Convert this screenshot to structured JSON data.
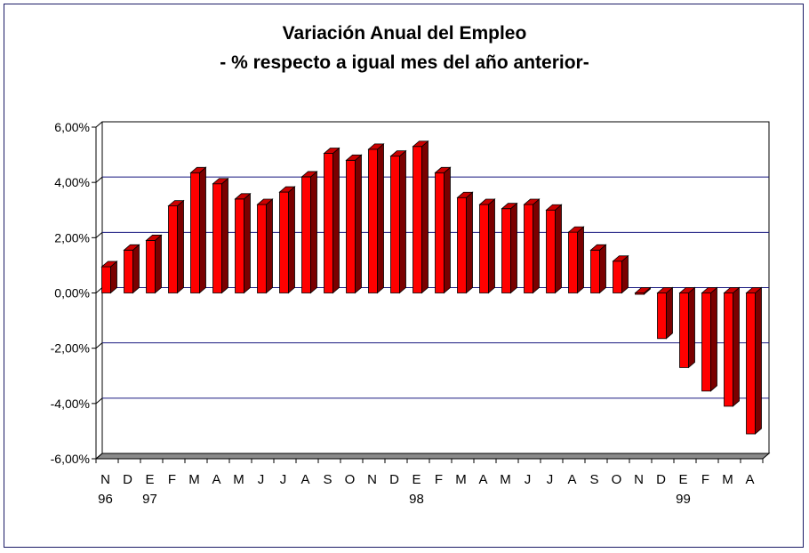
{
  "chart_data": {
    "type": "bar",
    "title": "Variación Anual del Empleo",
    "subtitle": "- % respecto a igual mes del año anterior-",
    "categories": [
      "N",
      "D",
      "E",
      "F",
      "M",
      "A",
      "M",
      "J",
      "J",
      "A",
      "S",
      "O",
      "N",
      "D",
      "E",
      "F",
      "M",
      "A",
      "M",
      "J",
      "J",
      "A",
      "S",
      "O",
      "N",
      "D",
      "E",
      "F",
      "M",
      "A"
    ],
    "year_labels": [
      "96",
      "",
      "97",
      "",
      "",
      "",
      "",
      "",
      "",
      "",
      "",
      "",
      "",
      "",
      "98",
      "",
      "",
      "",
      "",
      "",
      "",
      "",
      "",
      "",
      "",
      "",
      "99",
      "",
      "",
      ""
    ],
    "values": [
      0.95,
      1.55,
      1.9,
      3.15,
      4.35,
      3.95,
      3.4,
      3.2,
      3.65,
      4.2,
      5.05,
      4.8,
      5.2,
      4.95,
      5.3,
      4.35,
      3.45,
      3.2,
      3.05,
      3.2,
      3.0,
      2.2,
      1.55,
      1.15,
      -0.05,
      -1.65,
      -2.7,
      -3.55,
      -4.1,
      -5.1
    ],
    "y_ticks": [
      "6,00%",
      "4,00%",
      "2,00%",
      "0,00%",
      "-2,00%",
      "-4,00%",
      "-6,00%"
    ],
    "ylim": [
      -6,
      6
    ],
    "xlabel": "",
    "ylabel": "",
    "grid": true,
    "colors": {
      "bar_front": "#ff0000",
      "bar_side": "#7a0000",
      "bar_top": "#cc0000",
      "gridline": "#1a1a80",
      "floor": "#8a8a8a",
      "axis": "#000000"
    }
  }
}
